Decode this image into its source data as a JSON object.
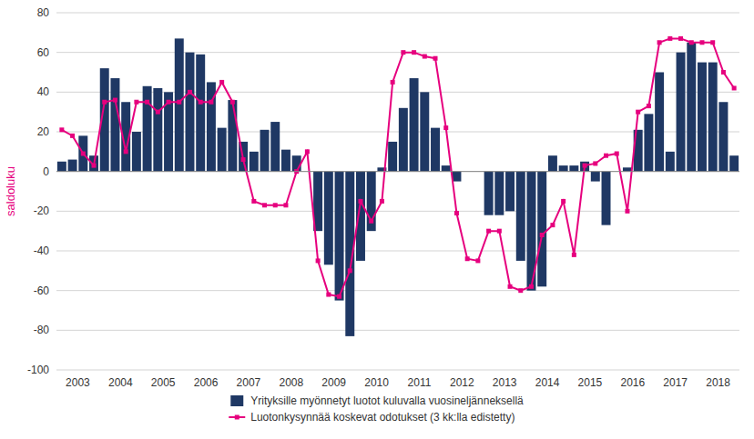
{
  "chart_data": {
    "type": "bar",
    "y_label": "saldoluku",
    "y_label_color": "#e6007e",
    "ylim": [
      -100,
      80
    ],
    "yticks": [
      -100,
      -80,
      -60,
      -40,
      -20,
      0,
      20,
      40,
      60,
      80
    ],
    "grid": true,
    "grid_color": "#c0c0c0",
    "legend": "bottom",
    "categories": [
      "2003",
      null,
      null,
      null,
      "2004",
      null,
      null,
      null,
      "2005",
      null,
      null,
      null,
      "2006",
      null,
      null,
      null,
      "2007",
      null,
      null,
      null,
      "2008",
      null,
      null,
      null,
      "2009",
      null,
      null,
      null,
      "2010",
      null,
      null,
      null,
      "2011",
      null,
      null,
      null,
      "2012",
      null,
      null,
      null,
      "2013",
      null,
      null,
      null,
      "2014",
      null,
      null,
      null,
      "2015",
      null,
      null,
      null,
      "2016",
      null,
      null,
      null,
      "2017",
      null,
      null,
      null,
      "2018",
      null,
      null,
      null
    ],
    "series": [
      {
        "name": "Yrityksille myönnetyt luotot kuluvalla vuosineljänneksellä",
        "type": "bar",
        "color": "#1f3864",
        "values": [
          5,
          6,
          18,
          8,
          52,
          47,
          35,
          20,
          43,
          42,
          40,
          67,
          60,
          59,
          45,
          22,
          36,
          15,
          10,
          21,
          25,
          11,
          8,
          0,
          -30,
          -47,
          -65,
          -83,
          -45,
          -30,
          2,
          15,
          32,
          47,
          40,
          22,
          3,
          -5,
          0,
          0,
          -22,
          -22,
          -20,
          -45,
          -60,
          -58,
          8,
          3,
          3,
          5,
          -5,
          -27,
          0,
          2,
          21,
          29,
          50,
          10,
          60,
          65,
          55,
          55,
          35,
          8
        ]
      },
      {
        "name": "Luotonkysynnää koskevat odotukset (3 kk:lla edistetty)",
        "type": "line",
        "color": "#e6007e",
        "marker": "square",
        "line_style": "solid",
        "values": [
          21,
          18,
          9,
          3,
          35,
          36,
          10,
          35,
          35,
          30,
          35,
          35,
          40,
          35,
          35,
          45,
          35,
          6,
          -15,
          -17,
          -17,
          -17,
          0,
          10,
          -45,
          -62,
          -63,
          -50,
          -15,
          -25,
          -15,
          45,
          60,
          60,
          58,
          57,
          22,
          -21,
          -44,
          -45,
          -30,
          -30,
          -58,
          -60,
          -58,
          -32,
          -27,
          -15,
          -42,
          3,
          4,
          8,
          9,
          -20,
          30,
          33,
          65,
          67,
          67,
          65,
          65,
          65,
          50,
          42
        ]
      }
    ]
  }
}
